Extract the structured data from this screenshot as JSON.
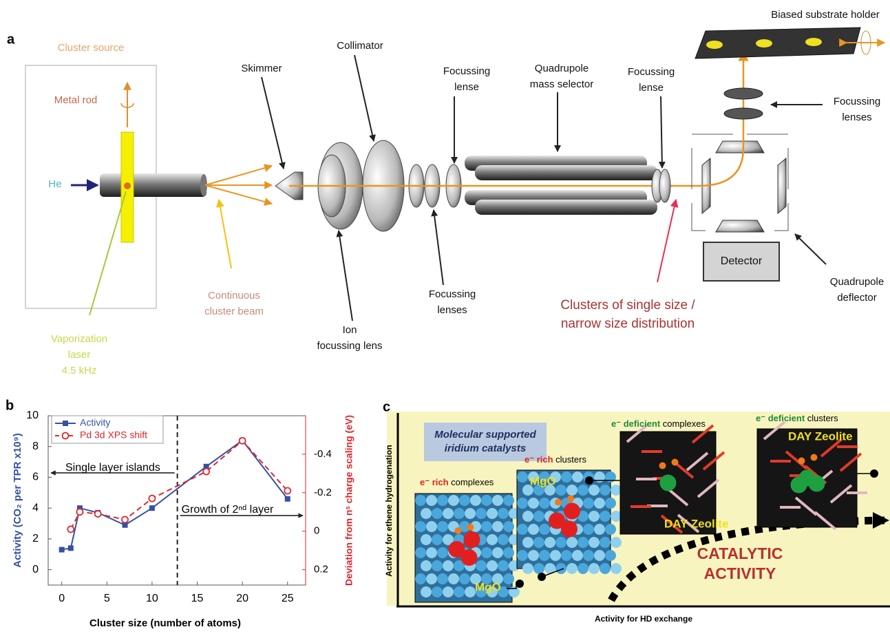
{
  "panel_a": {
    "letter": "a",
    "labels": [
      {
        "lines": [
          "Cluster source"
        ]
      },
      {
        "lines": [
          "Metal rod"
        ]
      },
      {
        "lines": [
          "He"
        ]
      },
      {
        "lines": [
          "Vaporization",
          "laser",
          "4.5 kHz"
        ]
      },
      {
        "lines": [
          "Continuous",
          "cluster beam"
        ]
      },
      {
        "lines": [
          "Skimmer"
        ]
      },
      {
        "lines": [
          "Collimator"
        ]
      },
      {
        "lines": [
          "Ion",
          "focussing lens"
        ]
      },
      {
        "lines": [
          "Focussing",
          "lense"
        ]
      },
      {
        "lines": [
          "Focussing",
          "lenses"
        ]
      },
      {
        "lines": [
          "Quadrupole",
          "mass selector"
        ]
      },
      {
        "lines": [
          "Focussing",
          "lense"
        ]
      },
      {
        "lines": [
          "Clusters of single size /",
          "narrow size distribution"
        ]
      },
      {
        "lines": [
          "Biased substrate holder"
        ]
      },
      {
        "lines": [
          "Focussing",
          "lenses"
        ]
      },
      {
        "lines": [
          "Detector"
        ]
      },
      {
        "lines": [
          "Quadrupole",
          "deflector"
        ]
      }
    ]
  },
  "chart_data": {
    "type": "line",
    "letter": "b",
    "x_label": "Cluster size (number of atoms)",
    "y_label": "Activity (CO₂ per TPR x10⁹)",
    "y2_label": "Deviation from nˢ charge scaling (eV)",
    "xlim": [
      -1.5,
      27
    ],
    "xticks": [
      0,
      5,
      10,
      15,
      20,
      25
    ],
    "ylim": [
      -1,
      10
    ],
    "yticks": [
      0,
      2,
      4,
      6,
      8,
      10
    ],
    "y2lim": [
      0.28,
      -0.6
    ],
    "y2ticks": [
      -0.4,
      -0.2,
      0.0,
      0.2
    ],
    "divider_x": 12.8,
    "annotations": [
      "Single layer islands",
      "Growth of 2ⁿᵈ layer"
    ],
    "series": [
      {
        "name": "Activity",
        "color": "#3451a6",
        "marker": "square",
        "dash": false,
        "x": [
          0,
          1,
          2,
          4,
          7,
          10,
          16,
          20,
          25
        ],
        "values": [
          1.3,
          1.4,
          4.0,
          3.7,
          2.9,
          4.0,
          6.7,
          8.4,
          4.6
        ]
      },
      {
        "name": "Pd 3d XPS shift",
        "color": "#e0262a",
        "marker": "circle",
        "dash": true,
        "axis": "y2",
        "x": [
          1,
          2,
          4,
          7,
          10,
          16,
          20,
          25
        ],
        "values": [
          -0.01,
          -0.1,
          -0.09,
          -0.06,
          -0.17,
          -0.31,
          -0.47,
          -0.21
        ]
      }
    ]
  },
  "panel_c": {
    "letter": "c",
    "box": [
      "Molecular supported",
      "iridium catalysts"
    ],
    "items": [
      {
        "tag": "e⁻ rich",
        "rest": " complexes",
        "image_label": "MgO"
      },
      {
        "tag": "e⁻ rich",
        "rest": " clusters",
        "image_label": "MgO"
      },
      {
        "tag": "e⁻ deficient",
        "rest": " complexes",
        "image_label": "DAY Zeolite"
      },
      {
        "tag": "e⁻ deficient",
        "rest": " clusters",
        "image_label": "DAY Zeolite"
      }
    ],
    "big_label": [
      "CATALYTIC",
      "ACTIVITY"
    ],
    "y_label": "Activity for ethene hydrogenation",
    "x_label": "Activity for HD exchange"
  }
}
